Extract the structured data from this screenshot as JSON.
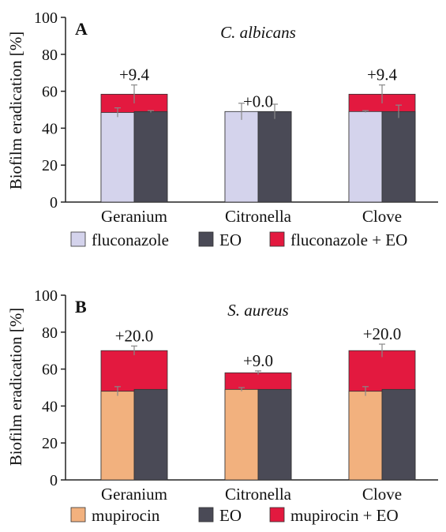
{
  "chart_data": [
    {
      "type": "bar",
      "panel_label": "A",
      "title": "C. albicans",
      "ylabel": "Biofilm eradication [%]",
      "ylim": [
        0,
        100
      ],
      "yticks": [
        "0",
        "20",
        "40",
        "60",
        "80",
        "100"
      ],
      "categories": [
        "Geranium",
        "Citronella",
        "Clove"
      ],
      "series": [
        {
          "name": "fluconazole",
          "values": [
            48.5,
            49.0,
            49.0
          ],
          "errors": [
            2.5,
            4.5,
            0.5
          ]
        },
        {
          "name": "EO",
          "values": [
            49.0,
            49.0,
            49.0
          ],
          "errors": [
            0.5,
            4.0,
            3.5
          ]
        },
        {
          "name": "fluconazole + EO",
          "values": [
            58.4,
            49.0,
            58.4
          ],
          "errors": [
            5.0,
            0,
            5.0
          ]
        }
      ],
      "annotations": [
        "+9.4",
        "+0.0",
        "+9.4"
      ],
      "colors": {
        "drug": "#d4d3ec",
        "eo": "#4a4a56",
        "combo": "#e3193f"
      }
    },
    {
      "type": "bar",
      "panel_label": "B",
      "title": "S. aureus",
      "ylabel": "Biofilm eradication [%]",
      "ylim": [
        0,
        100
      ],
      "yticks": [
        "0",
        "20",
        "40",
        "60",
        "80",
        "100"
      ],
      "categories": [
        "Geranium",
        "Citronella",
        "Clove"
      ],
      "series": [
        {
          "name": "mupirocin",
          "values": [
            48.0,
            49.0,
            48.0
          ],
          "errors": [
            2.5,
            1.0,
            2.5
          ]
        },
        {
          "name": "EO",
          "values": [
            49.0,
            49.0,
            49.0
          ],
          "errors": [
            0,
            0,
            0
          ]
        },
        {
          "name": "mupirocin + EO",
          "values": [
            70.0,
            58.0,
            70.0
          ],
          "errors": [
            2.5,
            1.0,
            3.5
          ]
        }
      ],
      "annotations": [
        "+20.0",
        "+9.0",
        "+20.0"
      ],
      "colors": {
        "drug": "#f2b17e",
        "eo": "#4a4a56",
        "combo": "#e3193f"
      }
    }
  ]
}
